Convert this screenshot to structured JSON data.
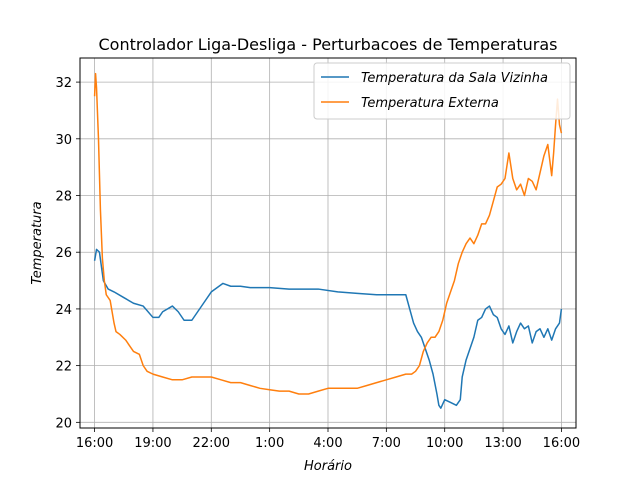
{
  "colors": {
    "series_blue": "#1f77b4",
    "series_orange": "#ff7f0e",
    "grid": "#b0b0b0",
    "axis": "#000000",
    "legend_border": "#cccccc"
  },
  "chart_data": {
    "type": "line",
    "title": "Controlador Liga-Desliga - Perturbacoes de Temperaturas",
    "xlabel": "Horário",
    "ylabel": "Temperatura",
    "xlim": [
      -0.75,
      24.75
    ],
    "ylim": [
      19.8,
      32.85
    ],
    "grid": true,
    "legend_position": "top-right",
    "x_ticks": [
      0,
      3,
      6,
      9,
      12,
      15,
      18,
      21,
      24
    ],
    "x_tick_labels": [
      "16:00",
      "19:00",
      "22:00",
      "1:00",
      "4:00",
      "7:00",
      "10:00",
      "13:00",
      "16:00"
    ],
    "y_ticks": [
      20,
      22,
      24,
      26,
      28,
      30,
      32
    ],
    "y_tick_labels": [
      "20",
      "22",
      "24",
      "26",
      "28",
      "30",
      "32"
    ],
    "x_unit_note": "hours since 16:00",
    "series": [
      {
        "name": "Temperatura da Sala Vizinha",
        "color": "#1f77b4",
        "points": [
          [
            0.0,
            25.7
          ],
          [
            0.1,
            26.1
          ],
          [
            0.25,
            26.0
          ],
          [
            0.45,
            25.0
          ],
          [
            0.7,
            24.7
          ],
          [
            1.0,
            24.6
          ],
          [
            1.5,
            24.4
          ],
          [
            2.0,
            24.2
          ],
          [
            2.5,
            24.1
          ],
          [
            3.0,
            23.7
          ],
          [
            3.3,
            23.7
          ],
          [
            3.5,
            23.9
          ],
          [
            4.0,
            24.1
          ],
          [
            4.3,
            23.9
          ],
          [
            4.6,
            23.6
          ],
          [
            5.0,
            23.6
          ],
          [
            5.3,
            23.9
          ],
          [
            5.6,
            24.2
          ],
          [
            6.0,
            24.6
          ],
          [
            6.6,
            24.9
          ],
          [
            7.0,
            24.8
          ],
          [
            7.5,
            24.8
          ],
          [
            8.0,
            24.75
          ],
          [
            9.0,
            24.75
          ],
          [
            10.0,
            24.7
          ],
          [
            11.5,
            24.7
          ],
          [
            12.5,
            24.6
          ],
          [
            13.5,
            24.55
          ],
          [
            14.5,
            24.5
          ],
          [
            15.5,
            24.5
          ],
          [
            16.0,
            24.5
          ],
          [
            16.2,
            24.0
          ],
          [
            16.4,
            23.5
          ],
          [
            16.6,
            23.2
          ],
          [
            16.8,
            23.0
          ],
          [
            17.0,
            22.6
          ],
          [
            17.2,
            22.2
          ],
          [
            17.4,
            21.7
          ],
          [
            17.6,
            21.0
          ],
          [
            17.7,
            20.6
          ],
          [
            17.8,
            20.5
          ],
          [
            18.0,
            20.8
          ],
          [
            18.3,
            20.7
          ],
          [
            18.6,
            20.6
          ],
          [
            18.8,
            20.8
          ],
          [
            18.9,
            21.6
          ],
          [
            19.1,
            22.2
          ],
          [
            19.3,
            22.6
          ],
          [
            19.5,
            23.0
          ],
          [
            19.7,
            23.6
          ],
          [
            19.9,
            23.7
          ],
          [
            20.1,
            24.0
          ],
          [
            20.3,
            24.1
          ],
          [
            20.5,
            23.8
          ],
          [
            20.7,
            23.7
          ],
          [
            20.9,
            23.3
          ],
          [
            21.1,
            23.1
          ],
          [
            21.3,
            23.4
          ],
          [
            21.5,
            22.8
          ],
          [
            21.7,
            23.2
          ],
          [
            21.9,
            23.5
          ],
          [
            22.1,
            23.3
          ],
          [
            22.3,
            23.4
          ],
          [
            22.5,
            22.8
          ],
          [
            22.7,
            23.2
          ],
          [
            22.9,
            23.3
          ],
          [
            23.1,
            23.0
          ],
          [
            23.3,
            23.3
          ],
          [
            23.5,
            22.9
          ],
          [
            23.7,
            23.3
          ],
          [
            23.9,
            23.5
          ],
          [
            24.0,
            24.0
          ]
        ]
      },
      {
        "name": "Temperatura Externa",
        "color": "#ff7f0e",
        "points": [
          [
            0.0,
            31.5
          ],
          [
            0.05,
            32.3
          ],
          [
            0.1,
            31.8
          ],
          [
            0.2,
            30.0
          ],
          [
            0.3,
            27.5
          ],
          [
            0.4,
            25.8
          ],
          [
            0.5,
            25.0
          ],
          [
            0.6,
            24.5
          ],
          [
            0.8,
            24.3
          ],
          [
            1.0,
            23.5
          ],
          [
            1.1,
            23.2
          ],
          [
            1.3,
            23.1
          ],
          [
            1.6,
            22.9
          ],
          [
            1.8,
            22.7
          ],
          [
            2.0,
            22.5
          ],
          [
            2.3,
            22.4
          ],
          [
            2.5,
            22.0
          ],
          [
            2.7,
            21.8
          ],
          [
            3.0,
            21.7
          ],
          [
            3.5,
            21.6
          ],
          [
            4.0,
            21.5
          ],
          [
            4.5,
            21.5
          ],
          [
            5.0,
            21.6
          ],
          [
            5.5,
            21.6
          ],
          [
            6.0,
            21.6
          ],
          [
            6.5,
            21.5
          ],
          [
            7.0,
            21.4
          ],
          [
            7.5,
            21.4
          ],
          [
            8.0,
            21.3
          ],
          [
            8.5,
            21.2
          ],
          [
            9.0,
            21.15
          ],
          [
            9.5,
            21.1
          ],
          [
            10.0,
            21.1
          ],
          [
            10.5,
            21.0
          ],
          [
            11.0,
            21.0
          ],
          [
            11.5,
            21.1
          ],
          [
            12.0,
            21.2
          ],
          [
            12.5,
            21.2
          ],
          [
            13.0,
            21.2
          ],
          [
            13.5,
            21.2
          ],
          [
            14.0,
            21.3
          ],
          [
            14.5,
            21.4
          ],
          [
            15.0,
            21.5
          ],
          [
            15.5,
            21.6
          ],
          [
            16.0,
            21.7
          ],
          [
            16.3,
            21.7
          ],
          [
            16.5,
            21.8
          ],
          [
            16.7,
            22.0
          ],
          [
            16.9,
            22.5
          ],
          [
            17.1,
            22.8
          ],
          [
            17.3,
            23.0
          ],
          [
            17.5,
            23.0
          ],
          [
            17.7,
            23.2
          ],
          [
            17.9,
            23.6
          ],
          [
            18.1,
            24.2
          ],
          [
            18.3,
            24.6
          ],
          [
            18.5,
            25.0
          ],
          [
            18.7,
            25.6
          ],
          [
            18.9,
            26.0
          ],
          [
            19.1,
            26.3
          ],
          [
            19.3,
            26.5
          ],
          [
            19.5,
            26.3
          ],
          [
            19.7,
            26.6
          ],
          [
            19.9,
            27.0
          ],
          [
            20.1,
            27.0
          ],
          [
            20.3,
            27.3
          ],
          [
            20.5,
            27.8
          ],
          [
            20.7,
            28.3
          ],
          [
            20.9,
            28.4
          ],
          [
            21.1,
            28.6
          ],
          [
            21.3,
            29.5
          ],
          [
            21.5,
            28.6
          ],
          [
            21.7,
            28.2
          ],
          [
            21.9,
            28.4
          ],
          [
            22.1,
            28.0
          ],
          [
            22.3,
            28.6
          ],
          [
            22.5,
            28.5
          ],
          [
            22.7,
            28.2
          ],
          [
            22.9,
            28.8
          ],
          [
            23.1,
            29.4
          ],
          [
            23.3,
            29.8
          ],
          [
            23.5,
            28.7
          ],
          [
            23.6,
            29.5
          ],
          [
            23.7,
            30.5
          ],
          [
            23.8,
            31.4
          ],
          [
            23.9,
            30.5
          ],
          [
            24.0,
            30.2
          ]
        ]
      }
    ]
  }
}
